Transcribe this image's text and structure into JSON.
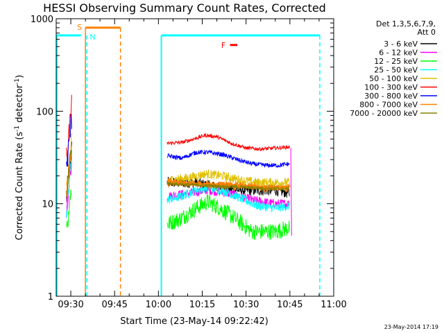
{
  "chart_data": {
    "type": "line",
    "title": "HESSI Observing Summary Count Rates, Corrected",
    "xlabel": "Start Time (23-May-14 09:22:42)",
    "ylabel_main": "Corrected Count Rate (s",
    "ylabel_sup1": "-1",
    "ylabel_mid": " detector",
    "ylabel_sup2": "-1",
    "ylabel_end": ")",
    "yscale": "log",
    "ylim": [
      1,
      1000
    ],
    "xlim_minutes": [
      565,
      660
    ],
    "x_ticks": [
      {
        "label": "09:30",
        "t": 570
      },
      {
        "label": "09:45",
        "t": 585
      },
      {
        "label": "10:00",
        "t": 600
      },
      {
        "label": "10:15",
        "t": 615
      },
      {
        "label": "10:30",
        "t": 630
      },
      {
        "label": "10:45",
        "t": 645
      },
      {
        "label": "11:00",
        "t": 660
      }
    ],
    "y_ticks": [
      {
        "label": "1",
        "v": 1
      },
      {
        "label": "10",
        "v": 10
      },
      {
        "label": "100",
        "v": 100
      },
      {
        "label": "1000",
        "v": 1000
      }
    ],
    "legend_header": [
      "Det 1,3,5,6,7,9,",
      "Att 0"
    ],
    "series": [
      {
        "name": "3 - 6 keV",
        "color": "#000000",
        "points": [
          [
            603,
            17
          ],
          [
            612,
            17
          ],
          [
            620,
            15
          ],
          [
            628,
            14
          ],
          [
            635,
            14
          ],
          [
            640,
            14
          ],
          [
            645,
            13
          ]
        ]
      },
      {
        "name": "6 - 12 keV",
        "color": "#ff00ff",
        "points": [
          [
            603,
            12
          ],
          [
            610,
            13
          ],
          [
            617,
            14
          ],
          [
            624,
            13
          ],
          [
            632,
            11
          ],
          [
            640,
            10
          ],
          [
            645,
            10
          ]
        ]
      },
      {
        "name": "12 - 25 keV",
        "color": "#00ff00",
        "points": [
          [
            603,
            6
          ],
          [
            608,
            7
          ],
          [
            613,
            9
          ],
          [
            617,
            10.5
          ],
          [
            621,
            9
          ],
          [
            626,
            7
          ],
          [
            632,
            5
          ],
          [
            640,
            5
          ],
          [
            645,
            5.5
          ]
        ]
      },
      {
        "name": "25 - 50 keV",
        "color": "#00ffff",
        "points": [
          [
            603,
            11
          ],
          [
            608,
            12
          ],
          [
            613,
            14
          ],
          [
            617,
            15
          ],
          [
            622,
            14
          ],
          [
            628,
            11.5
          ],
          [
            634,
            9.5
          ],
          [
            640,
            9
          ],
          [
            645,
            9.5
          ]
        ]
      },
      {
        "name": "50 - 100 keV",
        "color": "#e0c000",
        "points": [
          [
            603,
            18
          ],
          [
            610,
            19
          ],
          [
            616,
            21
          ],
          [
            622,
            20
          ],
          [
            628,
            18
          ],
          [
            634,
            17
          ],
          [
            640,
            17
          ],
          [
            645,
            17
          ]
        ]
      },
      {
        "name": "100 - 300 keV",
        "color": "#ff0000",
        "points": [
          [
            603,
            45
          ],
          [
            608,
            46
          ],
          [
            612,
            50
          ],
          [
            616,
            55
          ],
          [
            620,
            53
          ],
          [
            625,
            45
          ],
          [
            630,
            40
          ],
          [
            635,
            39
          ],
          [
            640,
            40
          ],
          [
            645,
            41
          ]
        ]
      },
      {
        "name": "300 - 800 keV",
        "color": "#0000ff",
        "points": [
          [
            603,
            33
          ],
          [
            608,
            31
          ],
          [
            613,
            36
          ],
          [
            617,
            36
          ],
          [
            622,
            34
          ],
          [
            627,
            30
          ],
          [
            632,
            27
          ],
          [
            637,
            26
          ],
          [
            641,
            26
          ],
          [
            645,
            27
          ]
        ]
      },
      {
        "name": "800 - 7000 keV",
        "color": "#ff8000",
        "points": [
          [
            603,
            17
          ],
          [
            610,
            16.5
          ],
          [
            616,
            16
          ],
          [
            622,
            16
          ],
          [
            628,
            15.5
          ],
          [
            634,
            15
          ],
          [
            640,
            15
          ],
          [
            645,
            15
          ]
        ]
      },
      {
        "name": "7000 - 20000 keV",
        "color": "#808000",
        "points": [
          [
            603,
            16.5
          ],
          [
            612,
            16
          ],
          [
            620,
            15.5
          ],
          [
            630,
            15
          ],
          [
            640,
            14.5
          ],
          [
            645,
            14.5
          ]
        ]
      }
    ],
    "markers": {
      "s_label": "S",
      "n_label": "N",
      "f_label": "F"
    }
  },
  "footer_date": "23-May-2014 17:19"
}
